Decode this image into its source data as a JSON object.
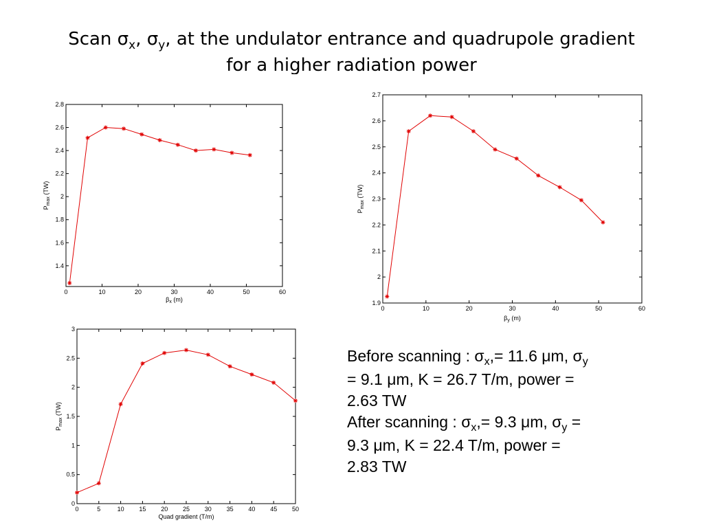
{
  "title": {
    "part1": "Scan ",
    "sigma": "σ",
    "sub_x": "x",
    "sep": ", ",
    "sub_y": "y",
    "part2": ", at the undulator entrance and quadrupole gradient",
    "line2": "for a higher radiation power"
  },
  "chart_data": [
    {
      "type": "line",
      "xlabel": {
        "sym": "β",
        "sub": "x",
        "unit": " (m)"
      },
      "ylabel": {
        "main": "P",
        "sub": "max",
        "unit": " (TW)"
      },
      "xlim": [
        0,
        60
      ],
      "ylim": [
        1.22,
        2.8
      ],
      "xticks": [
        0,
        10,
        20,
        30,
        40,
        50,
        60
      ],
      "yticks": [
        1.4,
        1.6,
        1.8,
        2,
        2.2,
        2.4,
        2.6,
        2.8
      ],
      "x": [
        1,
        6,
        11,
        16,
        21,
        26,
        31,
        36,
        41,
        46,
        51
      ],
      "y": [
        1.25,
        2.51,
        2.6,
        2.59,
        2.54,
        2.49,
        2.45,
        2.4,
        2.41,
        2.38,
        2.36
      ],
      "color": "#e00000",
      "marker": "asterisk"
    },
    {
      "type": "line",
      "xlabel": {
        "sym": "β",
        "sub": "y",
        "unit": " (m)"
      },
      "ylabel": {
        "main": "P",
        "sub": "max",
        "unit": " (TW)"
      },
      "xlim": [
        0,
        60
      ],
      "ylim": [
        1.9,
        2.7
      ],
      "xticks": [
        0,
        10,
        20,
        30,
        40,
        50,
        60
      ],
      "yticks": [
        1.9,
        2,
        2.1,
        2.2,
        2.3,
        2.4,
        2.5,
        2.6,
        2.7
      ],
      "x": [
        1,
        6,
        11,
        16,
        21,
        26,
        31,
        36,
        41,
        46,
        51
      ],
      "y": [
        1.925,
        2.56,
        2.62,
        2.615,
        2.56,
        2.49,
        2.455,
        2.39,
        2.345,
        2.295,
        2.21
      ],
      "color": "#e00000",
      "marker": "asterisk"
    },
    {
      "type": "line",
      "xlabel": {
        "text": "Quad gradient (T/m)"
      },
      "ylabel": {
        "main": "P",
        "sub": "max",
        "unit": " (TW)"
      },
      "xlim": [
        0,
        50
      ],
      "ylim": [
        0,
        3
      ],
      "xticks": [
        0,
        5,
        10,
        15,
        20,
        25,
        30,
        35,
        40,
        45,
        50
      ],
      "yticks": [
        0,
        0.5,
        1,
        1.5,
        2,
        2.5,
        3
      ],
      "x": [
        0,
        5,
        10,
        15,
        20,
        25,
        30,
        35,
        40,
        45,
        50
      ],
      "y": [
        0.19,
        0.35,
        1.71,
        2.41,
        2.59,
        2.64,
        2.56,
        2.36,
        2.22,
        2.08,
        1.77
      ],
      "color": "#e00000",
      "marker": "asterisk"
    }
  ],
  "notes": {
    "before": {
      "l1a": "Before scanning : ",
      "sigma": "σ",
      "x": "x",
      "l1b": ",= 11.6 ",
      "mu": "μ",
      "l1c": "m, ",
      "y": "y",
      "l2a": "= 9.1 ",
      "l2b": "m, K = 26.7 T/m, power =",
      "l3": "2.63 TW"
    },
    "after": {
      "l1a": "After scanning : ",
      "sigma": "σ",
      "x": "x",
      "l1b": ",= 9.3 ",
      "mu": "μ",
      "l1c": "m, ",
      "y": "y",
      "l1d": " =",
      "l2a": "9.3 ",
      "l2b": "m, K = 22.4 T/m, power =",
      "l3": "2.83 TW"
    }
  }
}
